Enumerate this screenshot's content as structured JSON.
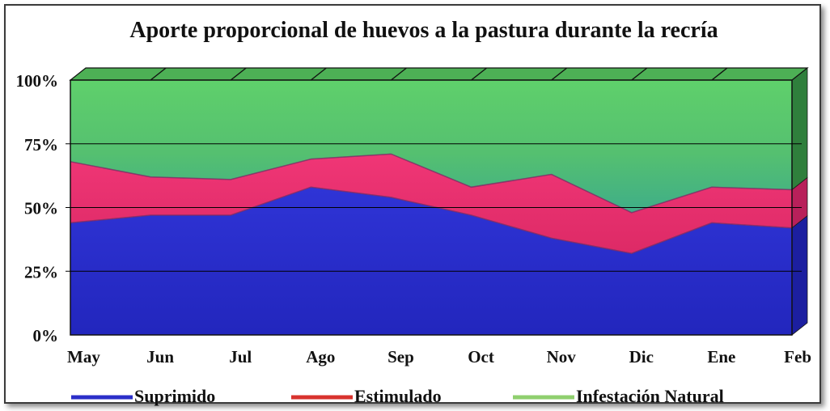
{
  "chart_data": {
    "type": "area",
    "stacking": "percent",
    "title": "Aporte proporcional de huevos a la pastura durante la recría",
    "categories": [
      "May",
      "Jun",
      "Jul",
      "Ago",
      "Sep",
      "Oct",
      "Nov",
      "Dic",
      "Ene",
      "Feb"
    ],
    "y_ticks": [
      "0%",
      "25%",
      "50%",
      "75%",
      "100%"
    ],
    "ylim": [
      0,
      100
    ],
    "grid": true,
    "three_d": true,
    "legend_position": "bottom",
    "series": [
      {
        "name": "Suprimido",
        "color": "#2b2fc9",
        "values": [
          44,
          47,
          47,
          58,
          54,
          47,
          38,
          32,
          44,
          42
        ]
      },
      {
        "name": "Estimulado",
        "color": "#e8306e",
        "values": [
          24,
          15,
          14,
          11,
          17,
          11,
          25,
          16,
          14,
          15
        ]
      },
      {
        "name": "Infestación Natural",
        "color": "#5cc86a",
        "values": [
          32,
          38,
          39,
          31,
          29,
          42,
          37,
          52,
          42,
          43
        ]
      }
    ],
    "legend_colors": {
      "Suprimido": "#2b2fc9",
      "Estimulado": "#d8332e",
      "Infestación Natural": "#8fcf6e"
    }
  }
}
